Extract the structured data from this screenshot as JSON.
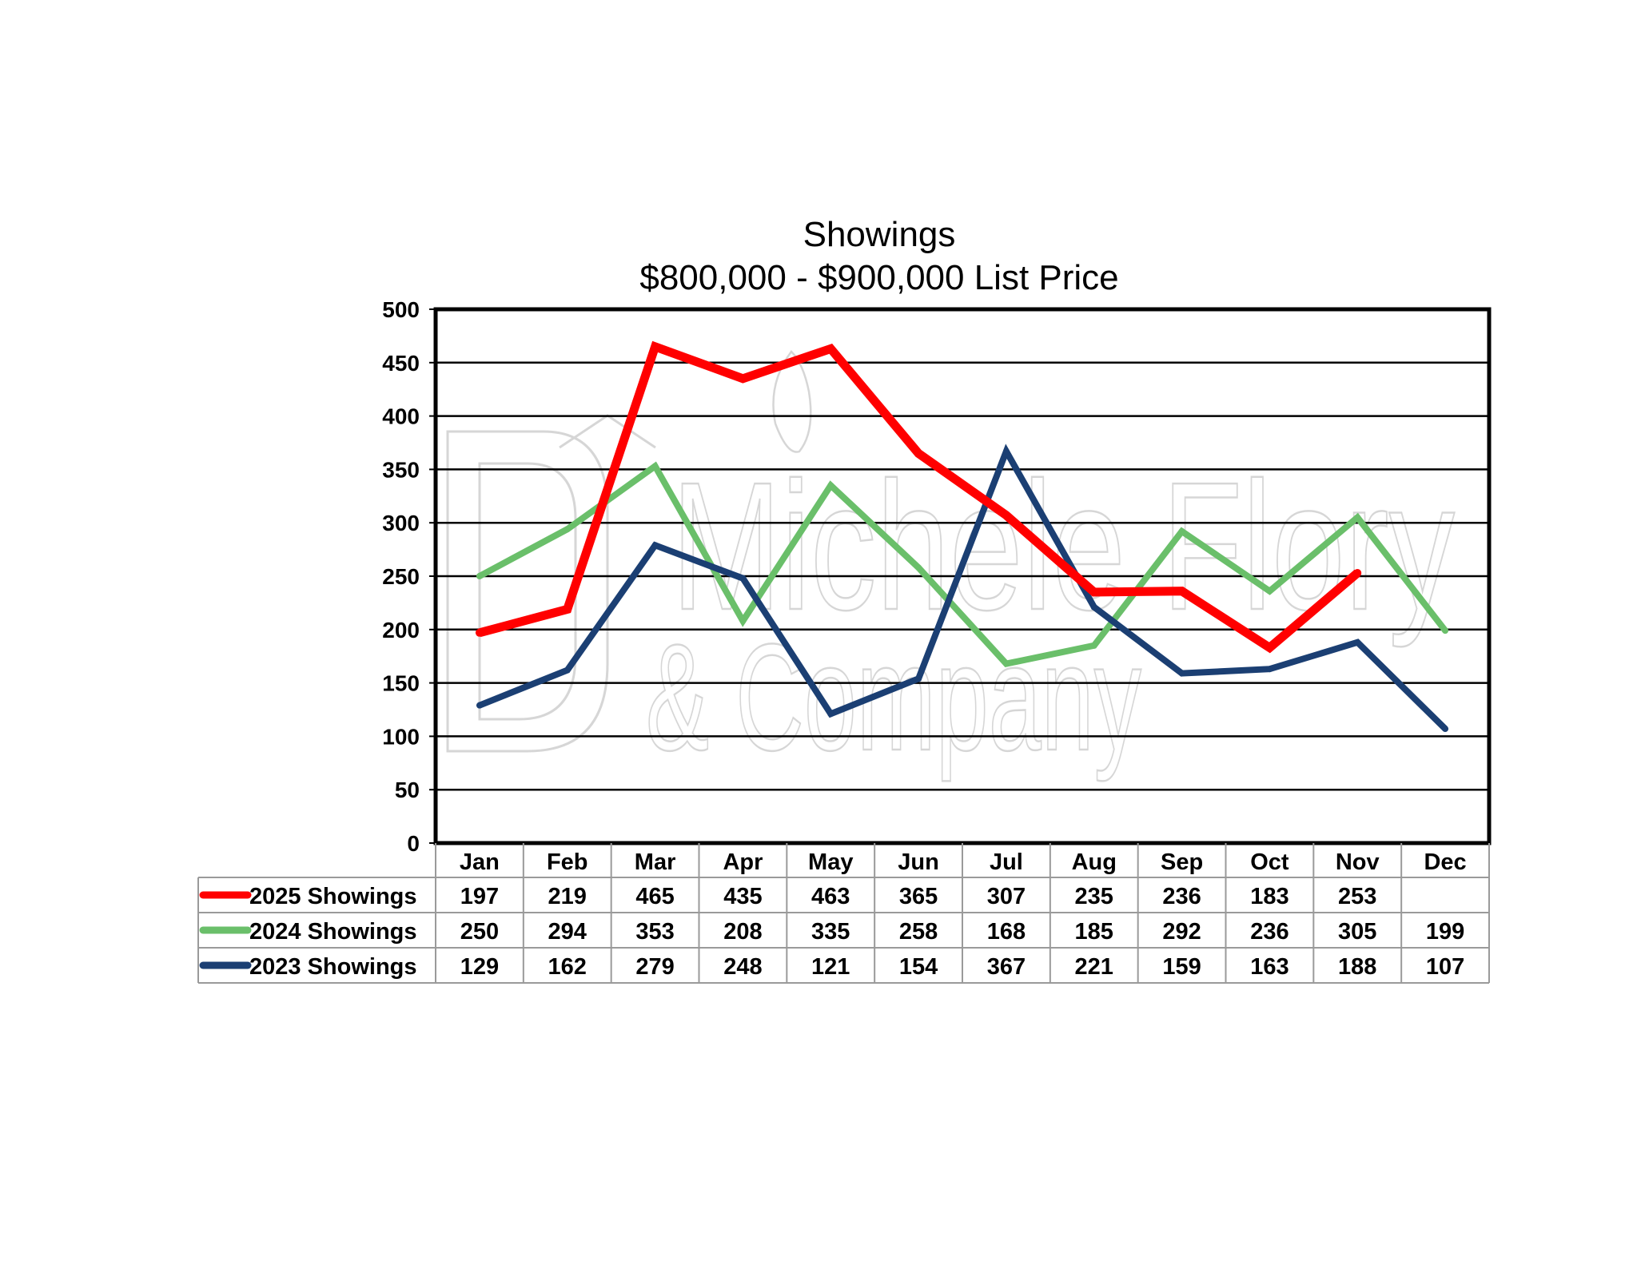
{
  "chart_data": {
    "type": "line",
    "title": "Showings",
    "subtitle": "$800,000 - $900,000 List Price",
    "categories": [
      "Jan",
      "Feb",
      "Mar",
      "Apr",
      "May",
      "Jun",
      "Jul",
      "Aug",
      "Sep",
      "Oct",
      "Nov",
      "Dec"
    ],
    "ylim": [
      0,
      500
    ],
    "yticks": [
      0,
      50,
      100,
      150,
      200,
      250,
      300,
      350,
      400,
      450,
      500
    ],
    "grid": true,
    "legend_placement": "data-table-left",
    "series": [
      {
        "name": "2025 Showings",
        "color": "#ff0000",
        "values": [
          197,
          219,
          465,
          435,
          463,
          365,
          307,
          235,
          236,
          183,
          253,
          null
        ]
      },
      {
        "name": "2024 Showings",
        "color": "#6abf6a",
        "values": [
          250,
          294,
          353,
          208,
          335,
          258,
          168,
          185,
          292,
          236,
          305,
          199
        ]
      },
      {
        "name": "2023 Showings",
        "color": "#1b3f73",
        "values": [
          129,
          162,
          279,
          248,
          121,
          154,
          367,
          221,
          159,
          163,
          188,
          107
        ]
      }
    ]
  },
  "watermark": {
    "line1": "Michele Flory",
    "line2": "& Company"
  }
}
